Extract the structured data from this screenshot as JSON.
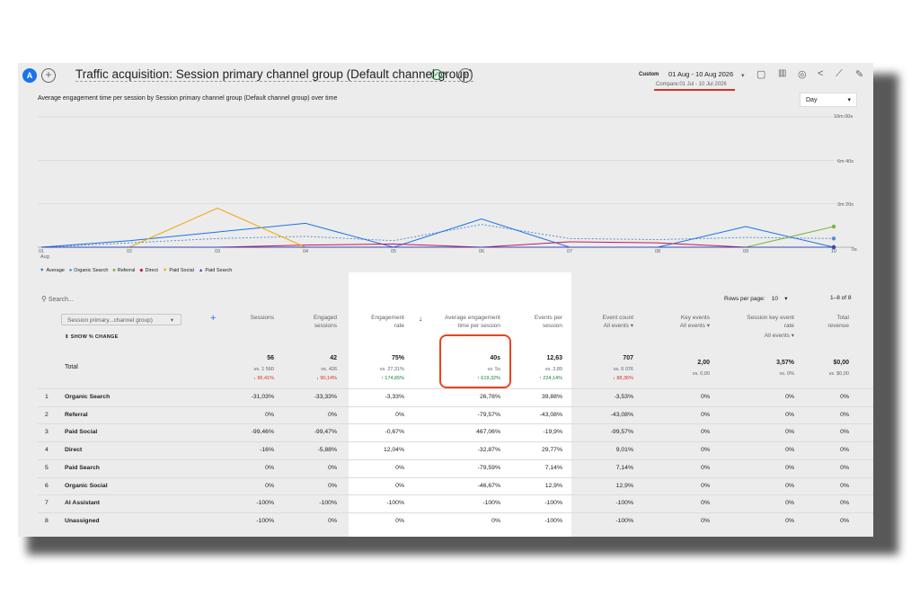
{
  "header": {
    "avatar": "A",
    "add_symbol": "+",
    "title": "Traffic acquisition: Session primary channel group (Default channel group)",
    "date_label": "Custom",
    "date_range": "01 Aug - 10 Aug 2026",
    "compare": "Compare:01 Jul - 10 Jul 2026",
    "colors": {
      "avatar": "#1a73e8",
      "underline": "#d93025"
    }
  },
  "chart": {
    "title": "Average engagement time per session by Session primary channel group (Default channel group) over time",
    "granularity": "Day",
    "y_ticks": [
      "10m 00s",
      "6m 40s",
      "3m 20s",
      "0s"
    ],
    "x_ticks": [
      "01",
      "02",
      "03",
      "04",
      "05",
      "06",
      "07",
      "08",
      "09",
      "10"
    ],
    "x_sub": "Aug",
    "legend": [
      {
        "name": "Average",
        "color": "#1a73e8",
        "marker": "▼"
      },
      {
        "name": "Organic Search",
        "color": "#1a73e8",
        "marker": "●"
      },
      {
        "name": "Referral",
        "color": "#7cb342",
        "marker": "■"
      },
      {
        "name": "Direct",
        "color": "#c2185b",
        "marker": "◆"
      },
      {
        "name": "Paid Social",
        "color": "#f2a600",
        "marker": "▼"
      },
      {
        "name": "Paid Search",
        "color": "#3949ab",
        "marker": "▲"
      }
    ]
  },
  "chart_data": {
    "type": "line",
    "x": [
      "01",
      "02",
      "03",
      "04",
      "05",
      "06",
      "07",
      "08",
      "09",
      "10"
    ],
    "ylim_seconds": [
      0,
      600
    ],
    "series": [
      {
        "name": "Average",
        "values": [
          0,
          20,
          40,
          50,
          30,
          105,
          40,
          35,
          45,
          40
        ]
      },
      {
        "name": "Organic Search",
        "values": [
          0,
          30,
          70,
          110,
          0,
          130,
          0,
          0,
          95,
          0
        ]
      },
      {
        "name": "Referral",
        "values": [
          0,
          0,
          0,
          0,
          0,
          0,
          0,
          0,
          0,
          95
        ]
      },
      {
        "name": "Direct",
        "values": [
          0,
          0,
          0,
          10,
          15,
          0,
          25,
          20,
          0,
          0
        ]
      },
      {
        "name": "Paid Social",
        "values": [
          0,
          0,
          180,
          0,
          0,
          0,
          0,
          0,
          0,
          0
        ]
      },
      {
        "name": "Paid Search",
        "values": [
          0,
          0,
          0,
          0,
          0,
          0,
          0,
          0,
          0,
          0
        ]
      }
    ]
  },
  "table": {
    "search_placeholder": "Search...",
    "rows_per_page_label": "Rows per page:",
    "rows_per_page": "10",
    "range_label": "1–8 of 8",
    "dimension_select": "Session primary...channel group)",
    "show_change": "SHOW % CHANGE",
    "headers": [
      {
        "l1": "Sessions",
        "l2": ""
      },
      {
        "l1": "Engaged",
        "l2": "sessions"
      },
      {
        "l1": "Engagement",
        "l2": "rate"
      },
      {
        "l1": "Average engagement",
        "l2": "time per session"
      },
      {
        "l1": "Events per",
        "l2": "session"
      },
      {
        "l1": "Event count",
        "l2": "All events ▾"
      },
      {
        "l1": "Key events",
        "l2": "All events ▾"
      },
      {
        "l1": "Session key event",
        "l2": "rate",
        "l3": "All events ▾"
      },
      {
        "l1": "Total",
        "l2": "revenue"
      }
    ],
    "total_label": "Total",
    "totals": [
      {
        "value": "56",
        "vs": "vs. 1 560",
        "change": "↓ 96,41%",
        "dir": "down"
      },
      {
        "value": "42",
        "vs": "vs. 426",
        "change": "↓ 90,14%",
        "dir": "down"
      },
      {
        "value": "75%",
        "vs": "vs. 27,31%",
        "change": "↑ 174,65%",
        "dir": "up"
      },
      {
        "value": "40s",
        "vs": "vs. 5s",
        "change": "↑ 619,32%",
        "dir": "up"
      },
      {
        "value": "12,63",
        "vs": "vs. 3,89",
        "change": "↑ 224,14%",
        "dir": "up"
      },
      {
        "value": "707",
        "vs": "vs. 6 076",
        "change": "↓ 88,36%",
        "dir": "down"
      },
      {
        "value": "2,00",
        "vs": "vs. 0,00",
        "change": "",
        "dir": ""
      },
      {
        "value": "3,57%",
        "vs": "vs. 0%",
        "change": "",
        "dir": ""
      },
      {
        "value": "$0,00",
        "vs": "vs. $0,00",
        "change": "",
        "dir": ""
      }
    ],
    "rows": [
      {
        "num": "1",
        "name": "Organic Search",
        "cells": [
          "-31,03%",
          "-33,33%",
          "-3,33%",
          "26,78%",
          "39,88%",
          "-3,53%",
          "0%",
          "0%",
          "0%"
        ]
      },
      {
        "num": "2",
        "name": "Referral",
        "cells": [
          "0%",
          "0%",
          "0%",
          "-79,57%",
          "-43,08%",
          "-43,08%",
          "0%",
          "0%",
          "0%"
        ]
      },
      {
        "num": "3",
        "name": "Paid Social",
        "cells": [
          "-99,46%",
          "-99,47%",
          "-0,67%",
          "467,06%",
          "-19,9%",
          "-99,57%",
          "0%",
          "0%",
          "0%"
        ]
      },
      {
        "num": "4",
        "name": "Direct",
        "cells": [
          "-16%",
          "-5,88%",
          "12,04%",
          "-32,87%",
          "29,77%",
          "9,01%",
          "0%",
          "0%",
          "0%"
        ]
      },
      {
        "num": "5",
        "name": "Paid Search",
        "cells": [
          "0%",
          "0%",
          "0%",
          "-79,59%",
          "7,14%",
          "7,14%",
          "0%",
          "0%",
          "0%"
        ]
      },
      {
        "num": "6",
        "name": "Organic Social",
        "cells": [
          "0%",
          "0%",
          "0%",
          "-46,67%",
          "12,9%",
          "12,9%",
          "0%",
          "0%",
          "0%"
        ]
      },
      {
        "num": "7",
        "name": "AI Assistant",
        "cells": [
          "-100%",
          "-100%",
          "-100%",
          "-100%",
          "-100%",
          "-100%",
          "0%",
          "0%",
          "0%"
        ]
      },
      {
        "num": "8",
        "name": "Unassigned",
        "cells": [
          "-100%",
          "0%",
          "0%",
          "0%",
          "-100%",
          "-100%",
          "0%",
          "0%",
          "0%"
        ]
      }
    ]
  }
}
